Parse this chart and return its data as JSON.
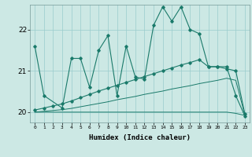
{
  "xlabel": "Humidex (Indice chaleur)",
  "ylabel": "",
  "background_color": "#cce8e4",
  "grid_color": "#99cccc",
  "line_color": "#1a7a6a",
  "x_ticks": [
    0,
    1,
    2,
    3,
    4,
    5,
    6,
    7,
    8,
    9,
    10,
    11,
    12,
    13,
    14,
    15,
    16,
    17,
    18,
    19,
    20,
    21,
    22,
    23
  ],
  "ylim": [
    19.75,
    22.6
  ],
  "xlim": [
    -0.5,
    23.5
  ],
  "yticks": [
    20,
    21,
    22
  ],
  "curve1_x": [
    0,
    1,
    3,
    4,
    5,
    6,
    7,
    8,
    9,
    10,
    11,
    12,
    13,
    14,
    15,
    16,
    17,
    18,
    19,
    20,
    21,
    22,
    23
  ],
  "curve1_y": [
    21.6,
    20.4,
    20.1,
    21.3,
    21.3,
    20.6,
    21.5,
    21.85,
    20.4,
    21.6,
    20.85,
    20.8,
    22.1,
    22.55,
    22.2,
    22.55,
    22.0,
    21.9,
    21.1,
    21.1,
    21.1,
    20.4,
    19.9
  ],
  "curve2_x": [
    0,
    1,
    2,
    3,
    4,
    5,
    6,
    7,
    8,
    9,
    10,
    11,
    12,
    13,
    14,
    15,
    16,
    17,
    18,
    19,
    20,
    21,
    22,
    23
  ],
  "curve2_y": [
    20.05,
    20.1,
    20.15,
    20.2,
    20.27,
    20.35,
    20.43,
    20.51,
    20.58,
    20.65,
    20.72,
    20.79,
    20.86,
    20.93,
    21.0,
    21.07,
    21.14,
    21.2,
    21.27,
    21.1,
    21.1,
    21.05,
    21.0,
    19.95
  ],
  "curve3_x": [
    0,
    1,
    2,
    3,
    4,
    5,
    6,
    7,
    8,
    9,
    10,
    11,
    12,
    13,
    14,
    15,
    16,
    17,
    18,
    19,
    20,
    21,
    22,
    23
  ],
  "curve3_y": [
    20.0,
    20.02,
    20.04,
    20.06,
    20.09,
    20.13,
    20.17,
    20.21,
    20.25,
    20.3,
    20.34,
    20.38,
    20.43,
    20.47,
    20.51,
    20.56,
    20.6,
    20.64,
    20.69,
    20.73,
    20.77,
    20.82,
    20.77,
    19.92
  ],
  "curve4_x": [
    0,
    1,
    2,
    3,
    4,
    5,
    6,
    7,
    8,
    9,
    10,
    11,
    12,
    13,
    14,
    15,
    16,
    17,
    18,
    19,
    20,
    21,
    22,
    23
  ],
  "curve4_y": [
    20.0,
    20.0,
    20.0,
    20.0,
    20.0,
    20.0,
    20.0,
    20.0,
    20.0,
    20.0,
    20.0,
    20.0,
    20.0,
    20.0,
    20.0,
    20.0,
    20.0,
    20.0,
    20.0,
    20.0,
    20.0,
    20.0,
    19.97,
    19.92
  ]
}
